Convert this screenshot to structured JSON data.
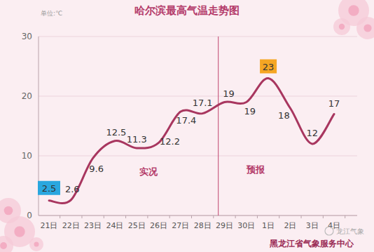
{
  "chart_data": {
    "type": "line",
    "title": "哈尔滨最高气温走势图",
    "y_label": "单位:℃",
    "categories": [
      "21日",
      "22日",
      "23日",
      "24日",
      "25日",
      "26日",
      "27日",
      "28日",
      "29日",
      "30日",
      "1日",
      "2日",
      "3日",
      "4日"
    ],
    "values": [
      2.5,
      2.6,
      9.6,
      12.5,
      11.3,
      12.2,
      17.4,
      17.1,
      19,
      19,
      23,
      18,
      12,
      17
    ],
    "color": "#a8365f",
    "ylim": [
      0,
      30
    ],
    "yticks": [
      0,
      10,
      20,
      30
    ],
    "grid": true,
    "data_labels": true,
    "annotations": [
      "实况",
      "预报"
    ],
    "source": "黑龙江省气象服务中心",
    "watermark": "龙江气象"
  }
}
